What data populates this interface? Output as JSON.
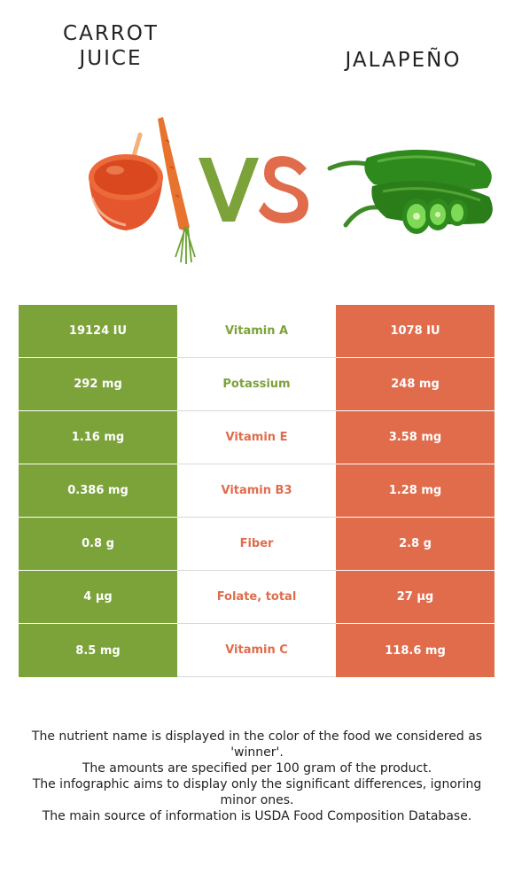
{
  "header": {
    "left_food": "CARROT JUICE",
    "right_food": "JALAPEÑO",
    "vs_label": "VS"
  },
  "colors": {
    "left_winner": "#7ca23a",
    "right_winner": "#e06c4c"
  },
  "icons": {
    "left": "carrot-juice-icon",
    "right": "jalapeno-icon"
  },
  "rows": [
    {
      "nutrient": "Vitamin A",
      "left": "19124 IU",
      "right": "1078 IU",
      "winner": "left"
    },
    {
      "nutrient": "Potassium",
      "left": "292 mg",
      "right": "248 mg",
      "winner": "left"
    },
    {
      "nutrient": "Vitamin E",
      "left": "1.16 mg",
      "right": "3.58 mg",
      "winner": "right"
    },
    {
      "nutrient": "Vitamin B3",
      "left": "0.386 mg",
      "right": "1.28 mg",
      "winner": "right"
    },
    {
      "nutrient": "Fiber",
      "left": "0.8 g",
      "right": "2.8 g",
      "winner": "right"
    },
    {
      "nutrient": "Folate, total",
      "left": "4 µg",
      "right": "27 µg",
      "winner": "right"
    },
    {
      "nutrient": "Vitamin C",
      "left": "8.5 mg",
      "right": "118.6 mg",
      "winner": "right"
    }
  ],
  "notes": [
    "The nutrient name is displayed in the color of the food we considered as 'winner'.",
    "The amounts are specified per 100 gram of the product.",
    "The infographic aims to display only the significant differences, ignoring minor ones.",
    "The main source of information is USDA Food Composition Database."
  ]
}
